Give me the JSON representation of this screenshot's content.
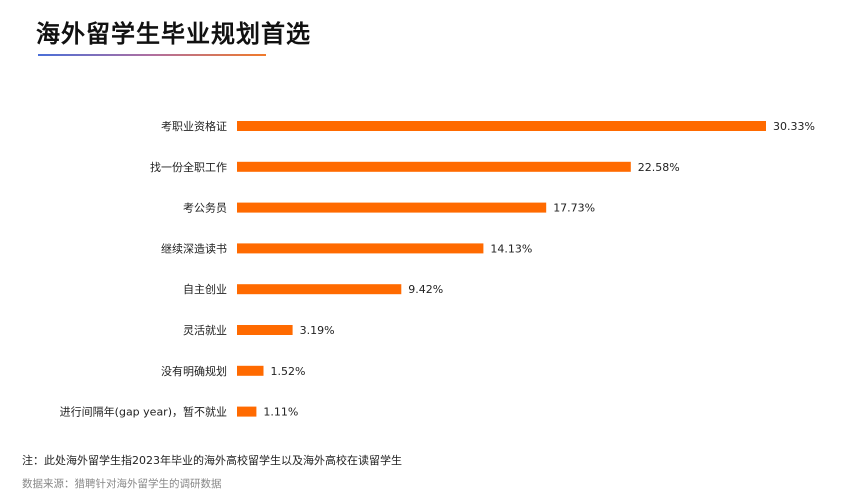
{
  "header": {
    "title": "海外留学生毕业规划首选"
  },
  "chart_data": {
    "type": "bar",
    "orientation": "horizontal",
    "categories": [
      "考职业资格证",
      "找一份全职工作",
      "考公务员",
      "继续深造读书",
      "自主创业",
      "灵活就业",
      "没有明确规划",
      "进行间隔年(gap year)，暂不就业"
    ],
    "values": [
      30.33,
      22.58,
      17.73,
      14.13,
      9.42,
      3.19,
      1.52,
      1.11
    ],
    "value_labels": [
      "30.33%",
      "22.58%",
      "17.73%",
      "14.13%",
      "9.42%",
      "3.19%",
      "1.52%",
      "1.11%"
    ],
    "bar_color": "#ff6a00",
    "grid": false,
    "legend": "none"
  },
  "footer": {
    "note": "注：此处海外留学生指2023年毕业的海外高校留学生以及海外高校在读留学生",
    "source": "数据来源：猎聘针对海外留学生的调研数据"
  }
}
